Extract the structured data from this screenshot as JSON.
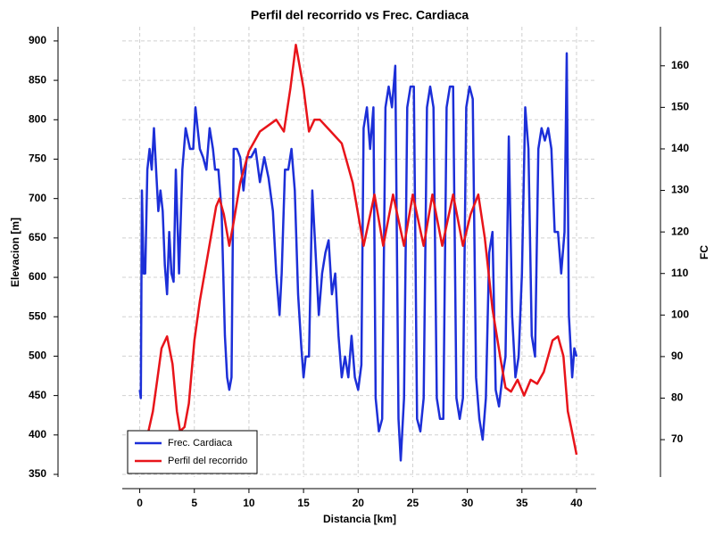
{
  "chart_data": {
    "type": "line",
    "title": "Perfil del recorrido vs Frec. Cardiaca",
    "x_label": "Distancia [km]",
    "y_label": "Elevacion [m]",
    "y2_label": "FC",
    "xlim": [
      -1.6,
      41.8
    ],
    "xticks": [
      0,
      5,
      10,
      15,
      20,
      25,
      30,
      35,
      40
    ],
    "ylim": [
      346.6,
      918
    ],
    "yticks": [
      350,
      400,
      450,
      500,
      550,
      600,
      650,
      700,
      750,
      800,
      850,
      900
    ],
    "y2lim": [
      61,
      169.4
    ],
    "y2ticks": [
      70,
      80,
      90,
      100,
      110,
      120,
      130,
      140,
      150,
      160
    ],
    "grid": true,
    "legend": "lower-left",
    "series": [
      {
        "name": "Frec. Cardiaca",
        "color": "#1c2fd8",
        "axis": "y2",
        "x": [
          0.0,
          0.1,
          0.2,
          0.35,
          0.5,
          0.7,
          0.9,
          1.1,
          1.3,
          1.5,
          1.7,
          1.9,
          2.1,
          2.3,
          2.5,
          2.7,
          2.9,
          3.1,
          3.3,
          3.6,
          3.9,
          4.2,
          4.6,
          4.9,
          5.1,
          5.3,
          5.5,
          5.8,
          6.1,
          6.4,
          6.7,
          6.9,
          7.2,
          7.5,
          7.8,
          8.0,
          8.2,
          8.4,
          8.6,
          8.9,
          9.2,
          9.5,
          9.8,
          10.2,
          10.6,
          11.0,
          11.4,
          11.8,
          12.2,
          12.5,
          12.8,
          13.0,
          13.3,
          13.6,
          13.9,
          14.2,
          14.5,
          14.8,
          15.0,
          15.2,
          15.5,
          15.8,
          16.1,
          16.4,
          16.7,
          17.0,
          17.3,
          17.6,
          17.9,
          18.2,
          18.5,
          18.8,
          19.1,
          19.4,
          19.7,
          20.0,
          20.3,
          20.5,
          20.8,
          21.1,
          21.4,
          21.6,
          21.9,
          22.2,
          22.5,
          22.8,
          23.1,
          23.4,
          23.7,
          23.9,
          24.2,
          24.5,
          24.8,
          25.1,
          25.4,
          25.7,
          26.0,
          26.3,
          26.6,
          26.9,
          27.2,
          27.5,
          27.8,
          28.1,
          28.4,
          28.7,
          29.0,
          29.3,
          29.6,
          29.9,
          30.2,
          30.5,
          30.8,
          31.1,
          31.4,
          31.7,
          32.0,
          32.3,
          32.6,
          32.9,
          33.2,
          33.5,
          33.8,
          34.1,
          34.4,
          34.7,
          35.0,
          35.3,
          35.6,
          35.9,
          36.2,
          36.5,
          36.8,
          37.1,
          37.4,
          37.7,
          38.0,
          38.3,
          38.6,
          38.9,
          39.1,
          39.3,
          39.6,
          39.8,
          40.0
        ],
        "values": [
          82,
          80,
          130,
          110,
          110,
          135,
          140,
          135,
          145,
          135,
          125,
          130,
          125,
          112,
          105,
          120,
          110,
          108,
          135,
          110,
          135,
          145,
          140,
          140,
          150,
          145,
          140,
          138,
          135,
          145,
          140,
          135,
          135,
          125,
          95,
          85,
          82,
          85,
          140,
          140,
          138,
          130,
          138,
          138,
          140,
          132,
          138,
          133,
          125,
          110,
          100,
          110,
          135,
          135,
          140,
          130,
          105,
          92,
          85,
          90,
          90,
          130,
          115,
          100,
          110,
          115,
          118,
          105,
          110,
          95,
          85,
          90,
          85,
          95,
          85,
          82,
          88,
          145,
          150,
          140,
          150,
          80,
          72,
          75,
          150,
          155,
          150,
          160,
          75,
          65,
          80,
          150,
          155,
          155,
          75,
          72,
          80,
          150,
          155,
          150,
          80,
          75,
          75,
          150,
          155,
          155,
          80,
          75,
          80,
          150,
          155,
          152,
          85,
          75,
          70,
          80,
          115,
          120,
          82,
          78,
          85,
          90,
          143,
          100,
          85,
          90,
          110,
          150,
          140,
          95,
          90,
          140,
          145,
          142,
          145,
          140,
          120,
          120,
          110,
          120,
          163,
          100,
          85,
          92,
          90
        ]
      },
      {
        "name": "Perfil del recorrido",
        "color": "#e8141a",
        "x": [
          0.8,
          1.2,
          1.6,
          2.0,
          2.5,
          3.0,
          3.4,
          3.7,
          4.1,
          4.5,
          5.0,
          5.5,
          6.0,
          6.5,
          7.0,
          7.3,
          7.7,
          8.2,
          8.6,
          9.2,
          10.0,
          11.0,
          12.0,
          12.5,
          13.2,
          13.8,
          14.3,
          15.0,
          15.5,
          16.0,
          16.5,
          17.5,
          18.5,
          19.5,
          20.5,
          21.5,
          22.3,
          23.2,
          24.2,
          25.0,
          26.0,
          26.8,
          27.7,
          28.7,
          29.6,
          30.3,
          31.0,
          31.6,
          32.3,
          33.0,
          33.5,
          34.0,
          34.6,
          35.2,
          35.8,
          36.4,
          37.0,
          37.8,
          38.3,
          38.8,
          39.2,
          39.5,
          40.0
        ],
        "values": [
          405,
          430,
          470,
          510,
          525,
          490,
          430,
          405,
          410,
          440,
          520,
          570,
          610,
          650,
          690,
          700,
          680,
          640,
          670,
          720,
          760,
          785,
          795,
          800,
          785,
          840,
          895,
          840,
          785,
          800,
          800,
          785,
          770,
          720,
          640,
          705,
          640,
          705,
          640,
          705,
          640,
          705,
          640,
          705,
          640,
          680,
          705,
          650,
          560,
          500,
          460,
          455,
          470,
          450,
          470,
          465,
          480,
          520,
          525,
          500,
          430,
          410,
          375
        ]
      }
    ]
  }
}
